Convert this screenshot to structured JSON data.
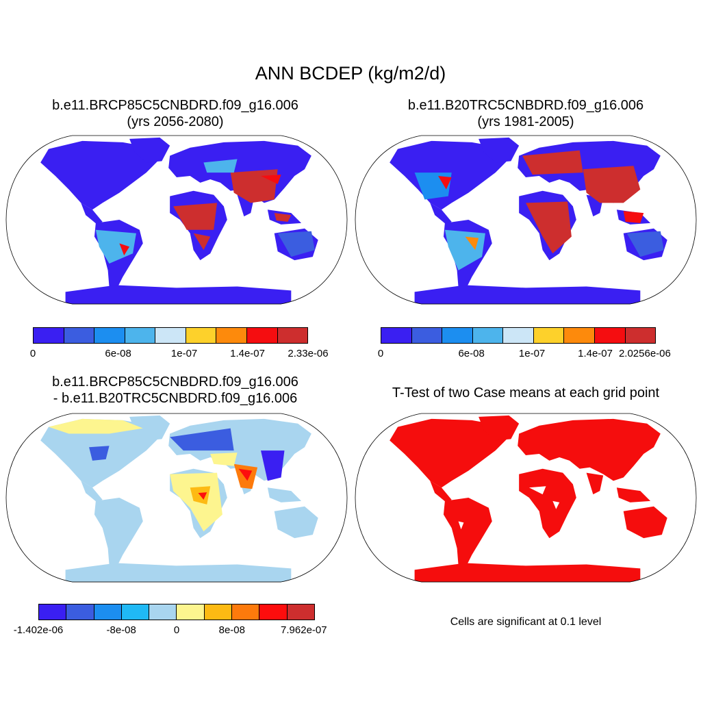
{
  "title": "ANN BCDEP (kg/m2/d)",
  "panels": [
    {
      "title_line1": "b.e11.BRCP85C5CNBDRD.f09_g16.006",
      "title_line2": "(yrs 2056-2080)",
      "colorbar": {
        "colors": [
          "#3a1ff2",
          "#3b5de0",
          "#1c8ef0",
          "#4db4ec",
          "#cce6f7",
          "#fdd12b",
          "#fd8a0c",
          "#f50d10",
          "#cd2e2e"
        ],
        "tick_labels": [
          "0",
          "6e-08",
          "1e-07",
          "1.4e-07",
          "2.33e-06"
        ]
      }
    },
    {
      "title_line1": "b.e11.B20TRC5CNBDRD.f09_g16.006",
      "title_line2": "(yrs 1981-2005)",
      "colorbar": {
        "colors": [
          "#3a1ff2",
          "#3b5de0",
          "#1c8ef0",
          "#4db4ec",
          "#cce6f7",
          "#fdd12b",
          "#fd8a0c",
          "#f50d10",
          "#cd2e2e"
        ],
        "tick_labels": [
          "0",
          "6e-08",
          "1e-07",
          "1.4e-07",
          "2.0256e-06"
        ]
      }
    },
    {
      "title_line1": "b.e11.BRCP85C5CNBDRD.f09_g16.006",
      "title_line2": "- b.e11.B20TRC5CNBDRD.f09_g16.006",
      "colorbar": {
        "colors": [
          "#3a1ff2",
          "#3b5de0",
          "#1c8ef0",
          "#20b9f5",
          "#a9d5ef",
          "#fdf58f",
          "#fdba13",
          "#fd7a0c",
          "#fd0d0d",
          "#cd2e2e"
        ],
        "tick_labels": [
          "-1.402e-06",
          "-8e-08",
          "0",
          "8e-08",
          "7.962e-07"
        ]
      }
    },
    {
      "title_line1": "T-Test of two Case means at each grid point",
      "note": "Cells are significant at 0.1 level",
      "fill_color": "#f50d0d"
    }
  ]
}
